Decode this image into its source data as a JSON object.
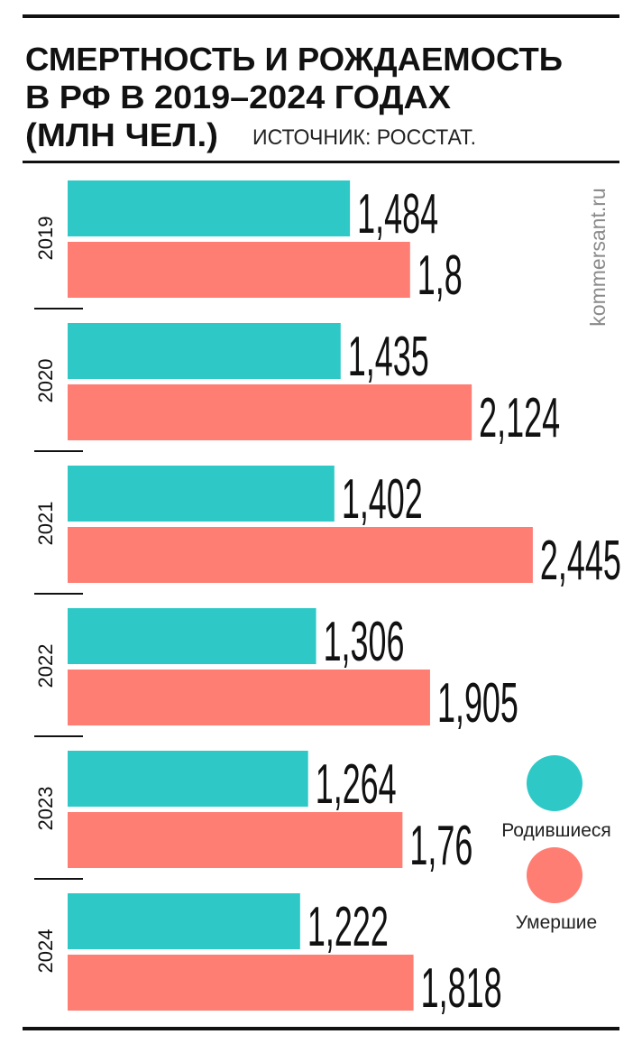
{
  "chart_data": {
    "type": "hbar_grouped",
    "title": [
      "СМЕРТНОСТЬ И РОЖДАЕМОСТЬ",
      "В РФ В 2019–2024 ГОДАХ",
      "(МЛН ЧЕЛ.)"
    ],
    "source": "ИСТОЧНИК: РОССТАТ.",
    "watermark": "kommersant.ru",
    "categories": [
      "2019",
      "2020",
      "2021",
      "2022",
      "2023",
      "2024"
    ],
    "series": [
      {
        "name": "Родившиеся",
        "color": "#2ec9c7",
        "values": [
          1.484,
          1.435,
          1.402,
          1.306,
          1.264,
          1.222
        ],
        "value_labels": [
          "1,484",
          "1,435",
          "1,402",
          "1,306",
          "1,264",
          "1,222"
        ]
      },
      {
        "name": "Умершие",
        "color": "#fe7e74",
        "values": [
          1.8,
          2.124,
          2.445,
          1.905,
          1.76,
          1.818
        ],
        "value_labels": [
          "1,8",
          "2,124",
          "2,445",
          "1,905",
          "1,76",
          "1,818"
        ]
      }
    ]
  }
}
